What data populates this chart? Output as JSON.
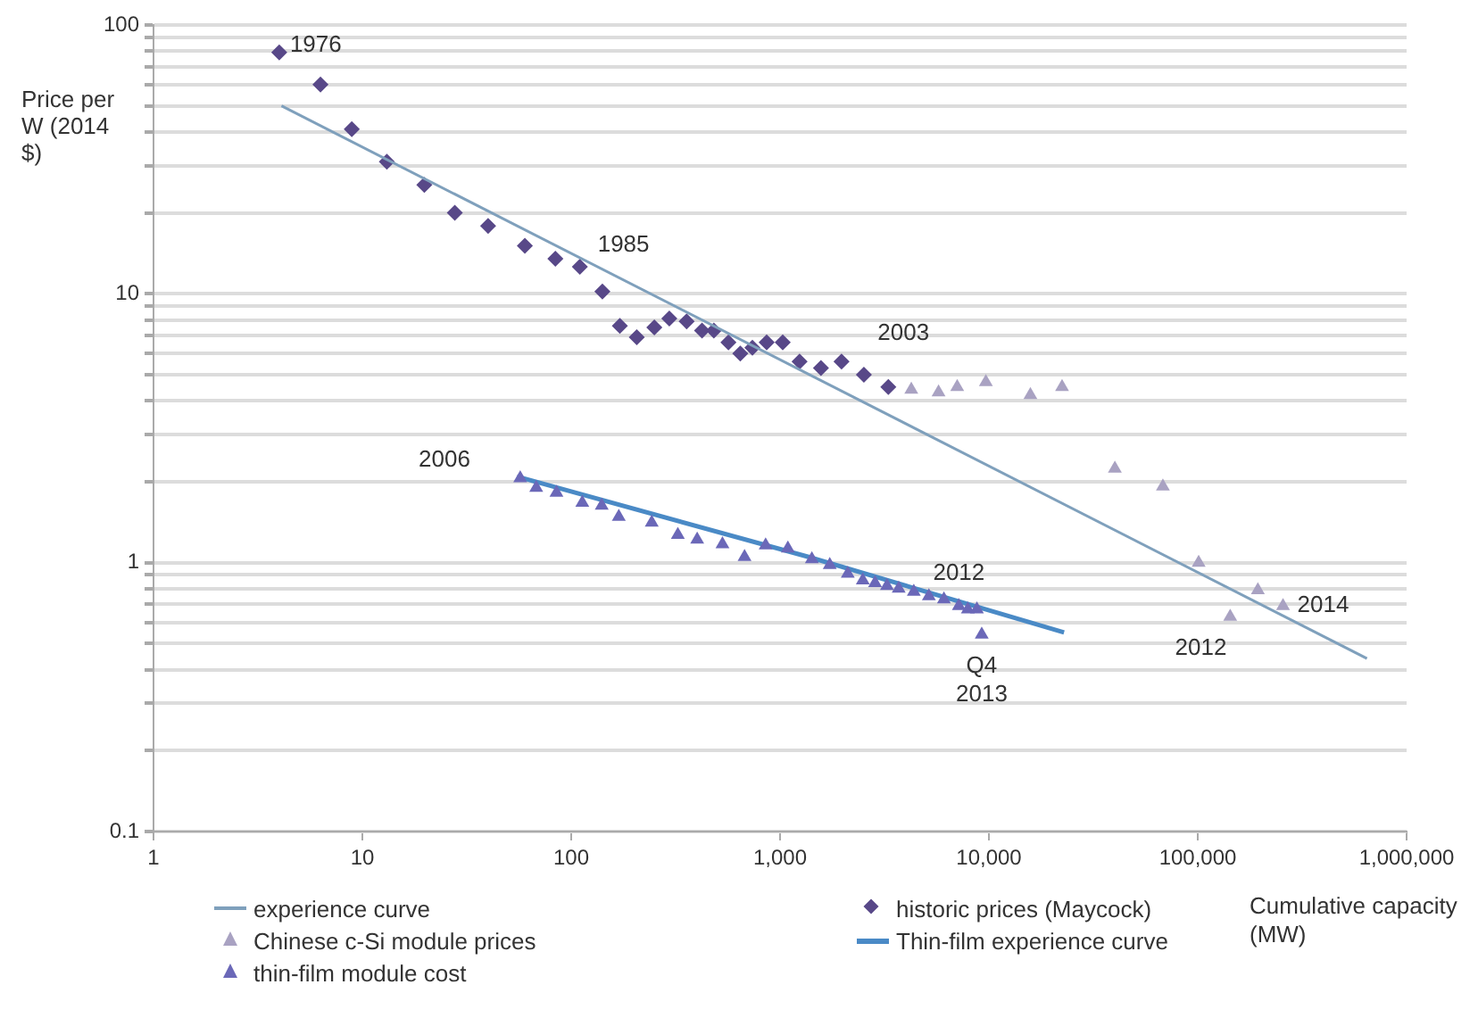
{
  "chart_data": {
    "type": "scatter",
    "ylabel": "Price per W (2014 $)",
    "xlabel": "Cumulative capacity (MW)",
    "log": "xy",
    "grid": "y",
    "legend": "bottom",
    "xlim": [
      1,
      1000000
    ],
    "xticks": [
      1,
      10,
      100,
      {
        "value": 1000,
        "label": "1,000"
      },
      {
        "value": 10000,
        "label": "10,000"
      },
      {
        "value": 100000,
        "label": "100,000"
      },
      {
        "value": 1000000,
        "label": "1,000,000"
      }
    ],
    "ylim": [
      0.1,
      100
    ],
    "yticks": [
      0.1,
      {
        "value": 0.2,
        "label": null
      },
      {
        "value": 0.3,
        "label": null
      },
      {
        "value": 0.4,
        "label": null
      },
      {
        "value": 0.5,
        "label": null
      },
      {
        "value": 0.6,
        "label": null
      },
      {
        "value": 0.7,
        "label": null
      },
      {
        "value": 0.8,
        "label": null
      },
      {
        "value": 0.9,
        "label": null
      },
      1,
      {
        "value": 2,
        "label": null
      },
      {
        "value": 3,
        "label": null
      },
      {
        "value": 4,
        "label": null
      },
      {
        "value": 5,
        "label": null
      },
      {
        "value": 6,
        "label": null
      },
      {
        "value": 7,
        "label": null
      },
      {
        "value": 8,
        "label": null
      },
      {
        "value": 9,
        "label": null
      },
      10,
      {
        "value": 20,
        "label": null
      },
      {
        "value": 30,
        "label": null
      },
      {
        "value": 40,
        "label": null
      },
      {
        "value": 50,
        "label": null
      },
      {
        "value": 60,
        "label": null
      },
      {
        "value": 70,
        "label": null
      },
      {
        "value": 80,
        "label": null
      },
      {
        "value": 90,
        "label": null
      },
      100
    ],
    "series": [
      {
        "name": "experience curve",
        "type": "line",
        "marker": "none",
        "color": "#7fa0bc",
        "x": [
          4.1,
          646000
        ],
        "values": [
          50,
          0.44
        ]
      },
      {
        "name": "Chinese c-Si module prices",
        "type": "scatter",
        "marker": "triangle",
        "color": "#a9a2c2",
        "x": [
          4250,
          5740,
          7050,
          9670,
          15800,
          22400,
          40100,
          68100,
          101000,
          143000,
          194000,
          256000
        ],
        "values": [
          4.4,
          4.3,
          4.5,
          4.7,
          4.2,
          4.5,
          2.24,
          1.92,
          1.0,
          0.63,
          0.79,
          0.69
        ]
      },
      {
        "name": "thin-film module cost",
        "type": "scatter",
        "marker": "triangle",
        "color": "#6b68b8",
        "x": [
          57,
          68,
          85,
          113,
          140,
          169,
          243,
          324,
          401,
          530,
          676,
          853,
          1090,
          1420,
          1730,
          2110,
          2490,
          2850,
          3250,
          3700,
          4370,
          5160,
          6090,
          7180,
          7930,
          8760,
          9240
        ],
        "values": [
          2.06,
          1.9,
          1.82,
          1.67,
          1.63,
          1.48,
          1.41,
          1.27,
          1.22,
          1.17,
          1.05,
          1.16,
          1.13,
          1.03,
          0.98,
          0.91,
          0.86,
          0.84,
          0.82,
          0.8,
          0.78,
          0.75,
          0.73,
          0.69,
          0.67,
          0.67,
          0.54
        ]
      },
      {
        "name": "historic prices (Maycock)",
        "type": "scatter",
        "marker": "diamond",
        "color": "#584888",
        "x": [
          4.0,
          6.3,
          8.9,
          13.1,
          19.8,
          27.7,
          40,
          60,
          84,
          110,
          141,
          171,
          206,
          250,
          295,
          357,
          423,
          482,
          566,
          645,
          737,
          863,
          1030,
          1240,
          1570,
          1970,
          2520,
          3300
        ],
        "values": [
          79,
          60,
          41,
          31,
          25.4,
          20,
          17.9,
          15.1,
          13.5,
          12.6,
          10.2,
          7.6,
          6.9,
          7.5,
          8.1,
          7.9,
          7.3,
          7.3,
          6.6,
          6.0,
          6.3,
          6.6,
          6.6,
          5.6,
          5.3,
          5.6,
          5.0,
          4.5
        ]
      },
      {
        "name": "Thin-film experience curve",
        "type": "line",
        "marker": "none",
        "color": "#4a8ac6",
        "x": [
          55,
          1370,
          22900
        ],
        "values": [
          2.09,
          1.05,
          0.55
        ]
      }
    ],
    "annotations": [
      {
        "text": "1976",
        "x": 4.0,
        "y": 79
      },
      {
        "text": "1985",
        "x": 110,
        "y": 12.6
      },
      {
        "text": "2003",
        "x": 3300,
        "y": 4.5
      },
      {
        "text": "2006",
        "x": 57,
        "y": 2.06
      },
      {
        "text": "2012",
        "x": 7180,
        "y": 0.69
      },
      {
        "text": "Q4 2013",
        "x": 9240,
        "y": 0.54
      },
      {
        "text": "2012",
        "x": 143000,
        "y": 0.63
      },
      {
        "text": "2014",
        "x": 256000,
        "y": 0.69
      }
    ]
  }
}
